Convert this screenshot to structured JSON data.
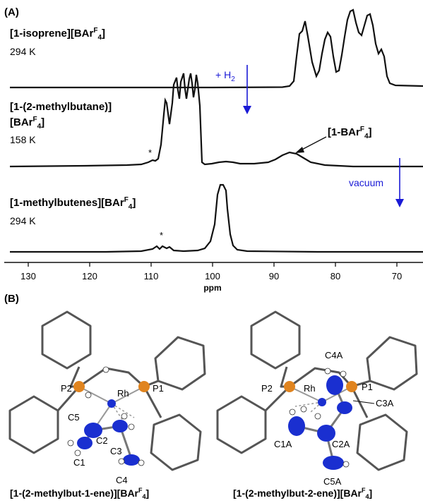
{
  "panel_a": {
    "label": "(A)",
    "spectra": [
      {
        "name_main": "[1-isoprene][BAr",
        "name_sup": "F",
        "name_sub": "4",
        "name_end": "]",
        "temp": "294 K"
      },
      {
        "name_line1": "[1-(2-methylbutane)]",
        "name_line2_main": "[BAr",
        "name_line2_sup": "F",
        "name_line2_sub": "4",
        "name_line2_end": "]",
        "temp": "158 K",
        "marker": "*"
      },
      {
        "name_main": "[1-methylbutenes][BAr",
        "name_sup": "F",
        "name_sub": "4",
        "name_end": "]",
        "temp": "294 K",
        "marker": "*"
      }
    ],
    "h2_arrow": {
      "text": "+ H",
      "sub": "2",
      "color": "#1a1ad6"
    },
    "vacuum_arrow": {
      "text": "vacuum",
      "color": "#1a1ad6"
    },
    "bar_callout": {
      "main": "[1-BAr",
      "sup": "F",
      "sub": "4",
      "end": "]"
    },
    "axis": {
      "xlabel": "ppm",
      "ticks": [
        "130",
        "120",
        "110",
        "100",
        "90",
        "80",
        "70"
      ]
    }
  },
  "panel_b": {
    "label": "(B)",
    "left_structure": {
      "atoms": [
        "P2",
        "Rh",
        "P1",
        "C5",
        "C2",
        "C3",
        "C1",
        "C4"
      ],
      "caption_main": "[1-(2-methylbut-1-ene)][BAr",
      "caption_sup": "F",
      "caption_sub": "4",
      "caption_end": "]"
    },
    "right_structure": {
      "atoms": [
        "C4A",
        "P2",
        "Rh",
        "P1",
        "C3A",
        "C1A",
        "C2A",
        "C5A"
      ],
      "caption_main": "[1-(2-methylbut-2-ene)][BAr",
      "caption_sup": "F",
      "caption_sub": "4",
      "caption_end": "]"
    },
    "colors": {
      "carbon": "#1a2fd0",
      "phosphorus": "#e0841f",
      "bond": "#555555"
    }
  }
}
